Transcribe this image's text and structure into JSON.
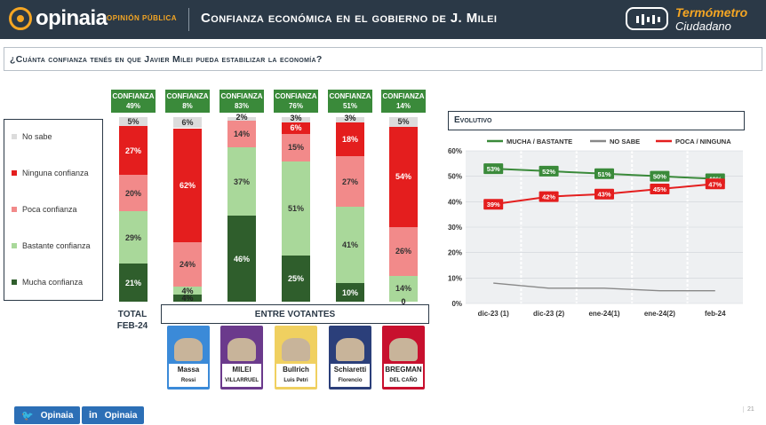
{
  "header": {
    "logo_text": "opinaia",
    "logo_sub": "OPINIÓN PÚBLICA",
    "title": "Confianza económica en el gobierno de J. Milei",
    "brand_line1": "Termómetro",
    "brand_line2": "Ciudadano"
  },
  "question": "¿Cuánta confianza tenés en que Javier Milei pueda estabilizar la economía?",
  "legend": [
    {
      "label": "No sabe",
      "color": "#dcdcdc"
    },
    {
      "label": "Ninguna confianza",
      "color": "#e41e1e"
    },
    {
      "label": "Poca confianza",
      "color": "#f28a8a"
    },
    {
      "label": "Bastante confianza",
      "color": "#a9d89a"
    },
    {
      "label": "Mucha confianza",
      "color": "#2f5e2c"
    }
  ],
  "chart_data": [
    {
      "type": "bar",
      "stacked": true,
      "categories": [
        "TOTAL FEB-24",
        "Massa",
        "Milei",
        "Bullrich",
        "Schiaretti",
        "Bregman"
      ],
      "confidence_labels": [
        "49%",
        "8%",
        "83%",
        "76%",
        "51%",
        "14%"
      ],
      "series": [
        {
          "name": "Mucha confianza",
          "values": [
            21,
            4,
            46,
            25,
            10,
            0
          ]
        },
        {
          "name": "Bastante confianza",
          "values": [
            29,
            4,
            37,
            51,
            41,
            14
          ]
        },
        {
          "name": "Poca confianza",
          "values": [
            20,
            24,
            14,
            15,
            27,
            26
          ]
        },
        {
          "name": "Ninguna confianza",
          "values": [
            27,
            62,
            0,
            6,
            18,
            54
          ]
        },
        {
          "name": "No sabe",
          "values": [
            5,
            6,
            2,
            3,
            3,
            5
          ]
        }
      ],
      "colors": [
        "#2f5e2c",
        "#a9d89a",
        "#f28a8a",
        "#e41e1e",
        "#dcdcdc"
      ],
      "shown_value_labels": [
        [
          "21%",
          "29%",
          "20%",
          "27%",
          "5%"
        ],
        [
          "4%",
          "4%",
          "24%",
          "62%",
          "6%"
        ],
        [
          "46%",
          "37%",
          "14%",
          "",
          "2%"
        ],
        [
          "25%",
          "51%",
          "15%",
          "6%",
          "3%"
        ],
        [
          "10%",
          "41%",
          "27%",
          "18%",
          "3%"
        ],
        [
          "0",
          "14%",
          "26%",
          "54%",
          "5%"
        ]
      ],
      "confidence_prefix": "CONFIANZA"
    },
    {
      "type": "line",
      "title": "Evolutivo",
      "x": [
        "dic-23 (1)",
        "dic-23 (2)",
        "ene-24(1)",
        "ene-24(2)",
        "feb-24"
      ],
      "series": [
        {
          "name": "MUCHA / BASTANTE",
          "values": [
            53,
            52,
            51,
            50,
            49
          ],
          "color": "#3a8a3a"
        },
        {
          "name": "NO SABE",
          "values": [
            8,
            6,
            6,
            5,
            5
          ],
          "color": "#888888"
        },
        {
          "name": "POCA / NINGUNA",
          "values": [
            39,
            42,
            43,
            45,
            47
          ],
          "color": "#e41e1e"
        }
      ],
      "ylim": [
        0,
        60
      ],
      "yticks": [
        "0%",
        "10%",
        "20%",
        "30%",
        "40%",
        "50%",
        "60%"
      ],
      "grid": true,
      "legend": "top"
    }
  ],
  "bottom": {
    "total_line1": "TOTAL",
    "total_line2": "FEB-24",
    "entre": "ENTRE VOTANTES"
  },
  "candidates": [
    {
      "line1": "Massa",
      "line2": "Rossi",
      "color": "#3b8ad8"
    },
    {
      "line1": "MILEI",
      "line2": "VILLARRUEL",
      "color": "#6b3a8c"
    },
    {
      "line1": "Bullrich",
      "line2": "Luis Petri",
      "color": "#f0d060"
    },
    {
      "line1": "Schiaretti",
      "line2": "Florencio Randazzo",
      "color": "#2b3f7a"
    },
    {
      "line1": "BREGMAN",
      "line2": "DEL CAÑO",
      "color": "#c8102e"
    }
  ],
  "social": {
    "twitter": "Opinaia",
    "linkedin": "Opinaia"
  },
  "page_number": "21"
}
